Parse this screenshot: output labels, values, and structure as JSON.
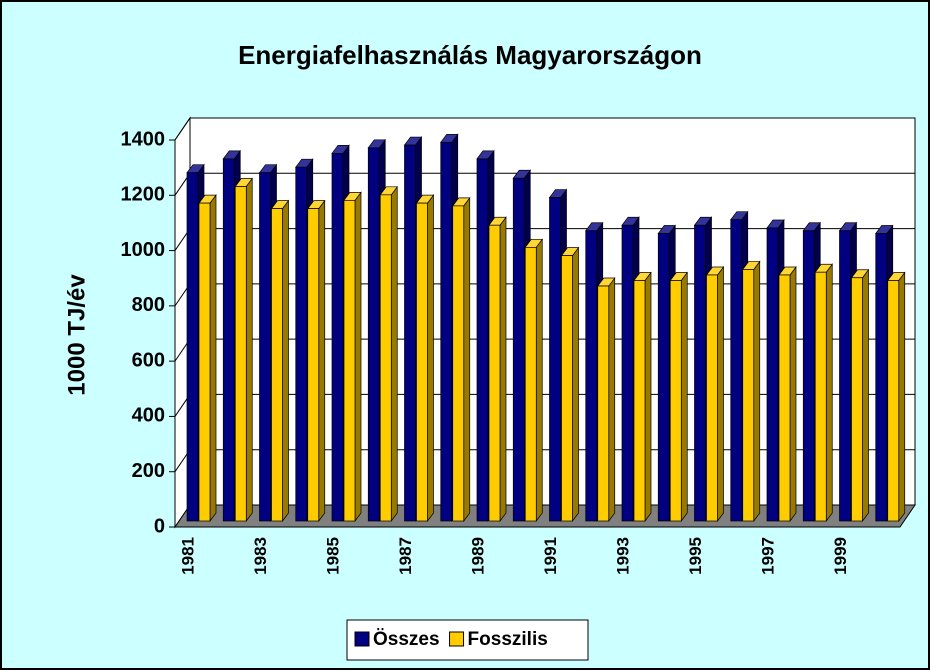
{
  "chart_data": {
    "type": "bar3d",
    "title": "Energiafelhasználás Magyarországon",
    "y_label": "1000 TJ/év",
    "categories": [
      "1981",
      null,
      "1983",
      null,
      "1985",
      null,
      "1987",
      null,
      "1989",
      null,
      "1991",
      null,
      "1993",
      null,
      "1995",
      null,
      "1997",
      null,
      "1999",
      null
    ],
    "series": [
      {
        "name": "Összes",
        "color": "#000080",
        "values": [
          1260,
          1310,
          1260,
          1280,
          1330,
          1350,
          1360,
          1370,
          1310,
          1240,
          1170,
          1050,
          1070,
          1040,
          1070,
          1090,
          1060,
          1050,
          1050,
          1040
        ]
      },
      {
        "name": "Fosszilis",
        "color": "#ffcc00",
        "values": [
          1150,
          1210,
          1130,
          1130,
          1160,
          1180,
          1150,
          1140,
          1070,
          990,
          960,
          850,
          870,
          870,
          890,
          910,
          890,
          900,
          880,
          870
        ]
      }
    ],
    "ylim": [
      0,
      1400
    ],
    "yticks": [
      0,
      200,
      400,
      600,
      800,
      1000,
      1200,
      1400
    ],
    "grid": true,
    "legend": "bottom"
  }
}
